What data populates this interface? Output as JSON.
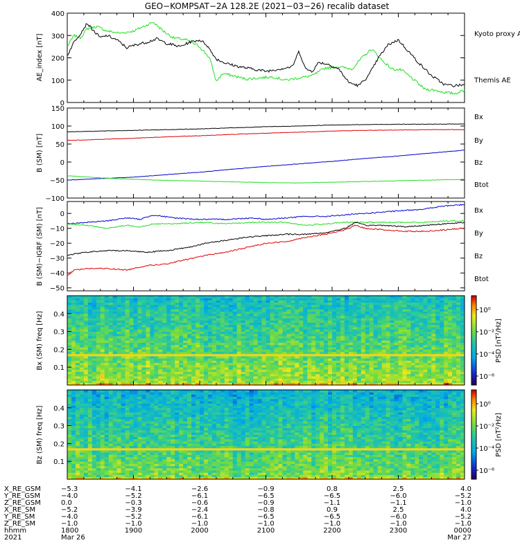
{
  "figure": {
    "title": "GEO−KOMPSAT−2A 128.2E (2021−03−26) recalib dataset"
  },
  "chart_data": [
    {
      "type": "line",
      "id": "ae",
      "ylabel": "AE_index [nT]",
      "ylim": [
        0,
        400
      ],
      "yticks": [
        0,
        100,
        200,
        300,
        400
      ],
      "x_range_hours": [
        18.0,
        24.0
      ],
      "series": [
        {
          "name": "Kyoto proxy AE",
          "color": "#22dd22",
          "x": [
            18.0,
            18.1,
            18.2,
            18.3,
            18.45,
            18.6,
            18.8,
            19.0,
            19.15,
            19.3,
            19.45,
            19.6,
            19.8,
            20.0,
            20.15,
            20.25,
            20.35,
            20.5,
            20.7,
            20.9,
            21.1,
            21.3,
            21.5,
            21.7,
            21.9,
            22.1,
            22.3,
            22.45,
            22.6,
            22.75,
            22.9,
            23.05,
            23.2,
            23.4,
            23.55,
            23.7,
            23.85,
            24.0
          ],
          "y": [
            250,
            300,
            290,
            330,
            340,
            320,
            310,
            320,
            340,
            360,
            320,
            290,
            280,
            250,
            200,
            95,
            130,
            120,
            105,
            110,
            115,
            100,
            110,
            120,
            155,
            160,
            150,
            200,
            240,
            190,
            150,
            145,
            110,
            60,
            55,
            45,
            40,
            55
          ]
        },
        {
          "name": "Themis AE",
          "color": "#000000",
          "x": [
            18.0,
            18.1,
            18.2,
            18.3,
            18.4,
            18.5,
            18.6,
            18.75,
            18.9,
            19.05,
            19.2,
            19.35,
            19.5,
            19.7,
            19.85,
            20.0,
            20.1,
            20.25,
            20.4,
            20.6,
            20.8,
            21.0,
            21.2,
            21.4,
            21.5,
            21.6,
            21.7,
            21.8,
            21.95,
            22.1,
            22.25,
            22.4,
            22.55,
            22.7,
            22.85,
            23.0,
            23.15,
            23.3,
            23.5,
            23.7,
            23.85,
            24.0
          ],
          "y": [
            210,
            270,
            310,
            355,
            320,
            290,
            300,
            280,
            245,
            260,
            270,
            285,
            265,
            250,
            270,
            280,
            260,
            195,
            175,
            160,
            150,
            140,
            150,
            160,
            230,
            150,
            140,
            180,
            170,
            150,
            90,
            75,
            120,
            200,
            260,
            280,
            230,
            180,
            120,
            80,
            75,
            80
          ]
        }
      ],
      "legend": [
        "Kyoto proxy AE",
        "Themis AE"
      ]
    },
    {
      "type": "line",
      "id": "b_sm",
      "ylabel": "B (SM) [nT]",
      "ylim": [
        -100,
        150
      ],
      "yticks": [
        -100,
        -50,
        0,
        50,
        100,
        150
      ],
      "x_range_hours": [
        18.0,
        24.0
      ],
      "series": [
        {
          "name": "Bx",
          "color": "#0000cc",
          "x": [
            18.0,
            18.5,
            19.0,
            19.5,
            20.0,
            20.5,
            21.0,
            21.5,
            22.0,
            22.5,
            23.0,
            23.5,
            24.0
          ],
          "y": [
            -50,
            -46,
            -42,
            -35,
            -28,
            -20,
            -12,
            -5,
            2,
            10,
            17,
            25,
            33
          ]
        },
        {
          "name": "By",
          "color": "#22dd22",
          "x": [
            18.0,
            18.5,
            19.0,
            19.5,
            20.0,
            20.5,
            21.0,
            21.5,
            22.0,
            22.5,
            23.0,
            23.5,
            24.0
          ],
          "y": [
            -38,
            -44,
            -48,
            -51,
            -53,
            -55,
            -57,
            -58,
            -56,
            -54,
            -52,
            -50,
            -48
          ]
        },
        {
          "name": "Bz",
          "color": "#dd0000",
          "x": [
            18.0,
            18.5,
            19.0,
            19.5,
            20.0,
            20.5,
            21.0,
            21.5,
            22.0,
            22.5,
            23.0,
            23.5,
            24.0
          ],
          "y": [
            60,
            63,
            66,
            70,
            73,
            77,
            80,
            83,
            86,
            88,
            89,
            90,
            90
          ]
        },
        {
          "name": "Btot",
          "color": "#000000",
          "x": [
            18.0,
            18.5,
            19.0,
            19.5,
            20.0,
            20.5,
            21.0,
            21.5,
            22.0,
            22.5,
            23.0,
            23.5,
            24.0
          ],
          "y": [
            84,
            86,
            88,
            90,
            92,
            95,
            98,
            100,
            103,
            104,
            105,
            105,
            106
          ]
        }
      ],
      "legend": [
        "Bx",
        "By",
        "Bz",
        "Btot"
      ]
    },
    {
      "type": "line",
      "id": "b_igrf",
      "ylabel": "B (SM)−IGRF (SM) [nT]",
      "ylim": [
        -52,
        8
      ],
      "yticks": [
        -50,
        -40,
        -30,
        -20,
        -10,
        0
      ],
      "x_range_hours": [
        18.0,
        24.0
      ],
      "series": [
        {
          "name": "Bx",
          "color": "#0000cc",
          "x": [
            18.0,
            18.3,
            18.6,
            18.9,
            19.1,
            19.3,
            19.6,
            20.0,
            20.4,
            20.8,
            21.0,
            21.3,
            21.6,
            21.9,
            22.2,
            22.5,
            22.8,
            23.1,
            23.4,
            23.7,
            24.0
          ],
          "y": [
            -7,
            -6,
            -5,
            -3,
            -4,
            -1,
            -3,
            -4,
            -4,
            -3,
            -4,
            -3,
            -2,
            -2,
            -1,
            0,
            1,
            2,
            3,
            5,
            6
          ]
        },
        {
          "name": "By",
          "color": "#22dd22",
          "x": [
            18.0,
            18.3,
            18.6,
            18.9,
            19.1,
            19.3,
            19.6,
            20.0,
            20.4,
            20.8,
            21.0,
            21.3,
            21.6,
            21.9,
            22.2,
            22.5,
            22.8,
            23.1,
            23.4,
            23.7,
            24.0
          ],
          "y": [
            -7,
            -8,
            -10,
            -8,
            -9,
            -7,
            -7,
            -6,
            -7,
            -6,
            -6,
            -6,
            -8,
            -7,
            -6,
            -6,
            -6,
            -6,
            -6,
            -5,
            -5
          ]
        },
        {
          "name": "Bz",
          "color": "#dd0000",
          "x": [
            18.0,
            18.1,
            18.3,
            18.6,
            18.9,
            19.2,
            19.5,
            19.8,
            20.1,
            20.4,
            20.7,
            21.0,
            21.3,
            21.6,
            21.9,
            22.2,
            22.35,
            22.5,
            22.8,
            23.1,
            23.4,
            23.7,
            24.0
          ],
          "y": [
            -42,
            -38,
            -37,
            -37,
            -38,
            -35,
            -34,
            -31,
            -28,
            -26,
            -23,
            -20,
            -19,
            -16,
            -14,
            -11,
            -8,
            -10,
            -11,
            -12,
            -12,
            -11,
            -10
          ]
        },
        {
          "name": "Btot",
          "color": "#000000",
          "x": [
            18.0,
            18.3,
            18.6,
            18.9,
            19.2,
            19.5,
            19.8,
            20.1,
            20.4,
            20.7,
            21.0,
            21.3,
            21.6,
            21.9,
            22.2,
            22.35,
            22.5,
            22.8,
            23.1,
            23.4,
            23.7,
            24.0
          ],
          "y": [
            -28,
            -26,
            -25,
            -25,
            -26,
            -25,
            -23,
            -20,
            -18,
            -16,
            -15,
            -14,
            -14,
            -13,
            -10,
            -6,
            -8,
            -8,
            -9,
            -8,
            -7,
            -6
          ]
        }
      ],
      "legend": [
        "Bx",
        "By",
        "Bz",
        "Btot"
      ]
    },
    {
      "type": "heatmap",
      "id": "spec_bx",
      "ylabel": "Bx (SM) freq [Hz]",
      "ylim": [
        0,
        0.5
      ],
      "yticks": [
        0.1,
        0.2,
        0.3,
        0.4
      ],
      "colorbar_label": "PSD [nT²/Hz]",
      "colorbar_ticks": [
        "10⁰",
        "10⁻²",
        "10⁻⁴",
        "10⁻⁶"
      ],
      "line_freq_hz": 0.17
    },
    {
      "type": "heatmap",
      "id": "spec_bz",
      "ylabel": "Bz (SM) freq [Hz]",
      "ylim": [
        0,
        0.5
      ],
      "yticks": [
        0.1,
        0.2,
        0.3,
        0.4
      ],
      "colorbar_label": "PSD [nT²/Hz]",
      "colorbar_ticks": [
        "10⁰",
        "10⁻²",
        "10⁻⁴",
        "10⁻⁶"
      ],
      "line_freq_hz": 0.17
    }
  ],
  "ephemeris": {
    "row_labels": [
      "X_RE_GSM",
      "Y_RE_GSM",
      "Z_RE_GSM",
      "X_RE_SM",
      "Y_RE_SM",
      "Z_RE_SM",
      "hhmm",
      "2021"
    ],
    "columns": [
      [
        "−5.3",
        "−4.0",
        "0.0",
        "−5.2",
        "−4.0",
        "−1.0",
        "1800",
        "Mar 26"
      ],
      [
        "−4.1",
        "−5.2",
        "−0.3",
        "−3.9",
        "−5.2",
        "−1.0",
        "1900",
        ""
      ],
      [
        "−2.6",
        "−6.1",
        "−0.6",
        "−2.4",
        "−6.1",
        "−1.0",
        "2000",
        ""
      ],
      [
        "−0.9",
        "−6.5",
        "−0.9",
        "−0.8",
        "−6.5",
        "−1.0",
        "2100",
        ""
      ],
      [
        "0.8",
        "−6.5",
        "−1.1",
        "0.9",
        "−6.5",
        "−1.0",
        "2200",
        ""
      ],
      [
        "2.5",
        "−6.0",
        "−1.1",
        "2.5",
        "−6.0",
        "−1.0",
        "2300",
        ""
      ],
      [
        "4.0",
        "−5.2",
        "−1.0",
        "4.0",
        "−5.2",
        "−1.0",
        "0000",
        "Mar 27"
      ]
    ]
  }
}
